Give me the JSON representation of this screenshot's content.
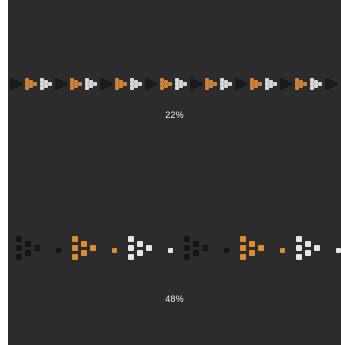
{
  "loaders": [
    {
      "progress_text": "22%",
      "progress": 0.22,
      "style": "small-arrow-strip",
      "colors": [
        "#1a1a1a",
        "#d0813a",
        "#d8d8d8"
      ]
    },
    {
      "progress_text": "48%",
      "progress": 0.48,
      "style": "large-arrow-strip",
      "colors": [
        "#151515",
        "#e08a2e",
        "#e6e6e6"
      ]
    }
  ]
}
